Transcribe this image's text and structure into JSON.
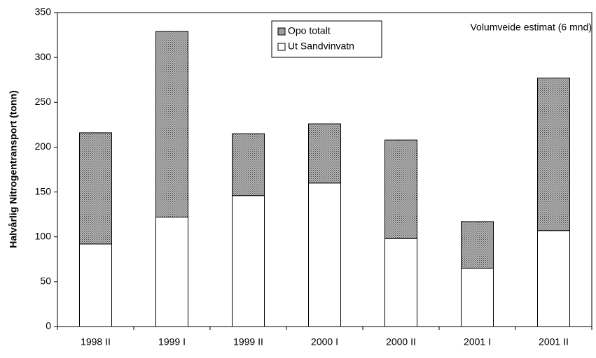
{
  "chart_data": {
    "type": "stacked_bar",
    "y_label": "Halvårlig Nitrogentransport (tonn)",
    "annotation": "Volumveide estimat (6 mnd)",
    "categories": [
      "1998 II",
      "1999 I",
      "1999 II",
      "2000 I",
      "2000 II",
      "2001 I",
      "2001 II"
    ],
    "series": [
      {
        "name": "Ut Sandvinvatn",
        "color": "#ffffff",
        "values": [
          92,
          122,
          146,
          160,
          98,
          65,
          107
        ]
      },
      {
        "name": "Opo totalt",
        "color": "#8a8a8a",
        "values": [
          124,
          207,
          69,
          66,
          110,
          52,
          170
        ]
      }
    ],
    "legend_order": [
      1,
      0
    ],
    "ylim": [
      0,
      350
    ],
    "yticks": [
      0,
      50,
      100,
      150,
      200,
      250,
      300,
      350
    ],
    "grid": false
  }
}
